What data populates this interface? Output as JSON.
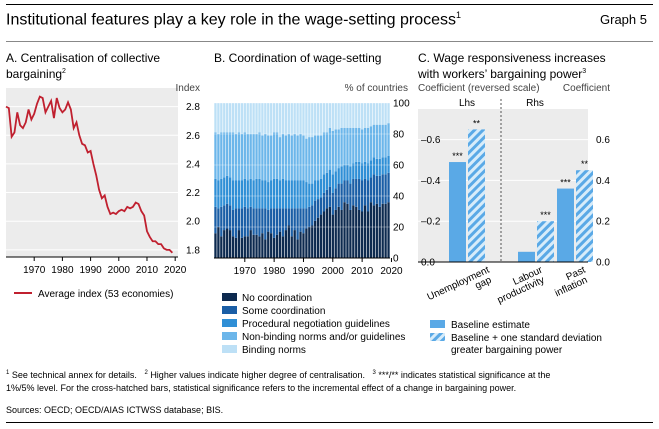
{
  "header": {
    "title": "Institutional features play a key role in the wage-setting process",
    "title_note": "1",
    "graph_number": "Graph 5"
  },
  "panels": {
    "a": {
      "title": "A. Centralisation of collective",
      "title_line2": "bargaining",
      "title_note": "2",
      "axis_unit": "Index"
    },
    "b": {
      "title": "B. Coordination of wage-setting",
      "axis_unit": "% of countries"
    },
    "c": {
      "title": "C. Wage responsiveness increases",
      "title_line2": "with workers’ bargaining power",
      "title_note": "3",
      "left_axis": "Coefficient (reversed scale)",
      "right_axis": "Coefficient",
      "lhs": "Lhs",
      "rhs": "Rhs"
    }
  },
  "footnotes": {
    "n1_mark": "1",
    "n1": "See technical annex for details.",
    "n2_mark": "2",
    "n2": "Higher values indicate higher degree of centralisation.",
    "n3_mark": "3",
    "n3a": "***/** indicates statistical significance at the",
    "n3b": "1%/5% level. For the cross-hatched bars, statistical significance refers to the incremental effect of a change in bargaining power.",
    "sources": "Sources: OECD; OECD/AIAS ICTWSS database; BIS."
  },
  "colors": {
    "accent_red": "#c0202f",
    "no_coord": "#0d2a4f",
    "some_coord": "#1a5ea6",
    "procedural": "#2f8fd6",
    "non_binding": "#6cb6ea",
    "binding": "#bde0f6",
    "baseline": "#5aa9e6"
  },
  "chart_data": [
    {
      "type": "line",
      "x": [
        1960,
        1961,
        1962,
        1963,
        1964,
        1965,
        1966,
        1967,
        1968,
        1969,
        1970,
        1971,
        1972,
        1973,
        1974,
        1975,
        1976,
        1977,
        1978,
        1979,
        1980,
        1981,
        1982,
        1983,
        1984,
        1985,
        1986,
        1987,
        1988,
        1989,
        1990,
        1991,
        1992,
        1993,
        1994,
        1995,
        1996,
        1997,
        1998,
        1999,
        2000,
        2001,
        2002,
        2003,
        2004,
        2005,
        2006,
        2007,
        2008,
        2009,
        2010,
        2011,
        2012,
        2013,
        2014,
        2015,
        2016,
        2017,
        2018,
        2019
      ],
      "series": [
        {
          "name": "Average index (53 economies)",
          "values": [
            2.8,
            2.79,
            2.59,
            2.62,
            2.76,
            2.67,
            2.65,
            2.69,
            2.78,
            2.71,
            2.75,
            2.82,
            2.87,
            2.86,
            2.76,
            2.8,
            2.84,
            2.72,
            2.86,
            2.79,
            2.76,
            2.78,
            2.83,
            2.78,
            2.65,
            2.69,
            2.6,
            2.54,
            2.53,
            2.48,
            2.49,
            2.4,
            2.32,
            2.22,
            2.16,
            2.18,
            2.1,
            2.05,
            2.06,
            2.05,
            2.07,
            2.08,
            2.07,
            2.1,
            2.09,
            2.1,
            2.13,
            2.12,
            2.07,
            2.04,
            1.93,
            1.89,
            1.86,
            1.86,
            1.84,
            1.84,
            1.81,
            1.8,
            1.8,
            1.78
          ]
        }
      ],
      "xticks": [
        1970,
        1980,
        1990,
        2000,
        2010,
        2020
      ],
      "yticks": [
        1.8,
        2.0,
        2.2,
        2.4,
        2.6,
        2.8
      ],
      "xlim": [
        1960,
        2021
      ],
      "ylim": [
        1.75,
        2.93
      ]
    },
    {
      "type": "bar",
      "stacked": true,
      "x": [
        1960,
        1961,
        1962,
        1963,
        1964,
        1965,
        1966,
        1967,
        1968,
        1969,
        1970,
        1971,
        1972,
        1973,
        1974,
        1975,
        1976,
        1977,
        1978,
        1979,
        1980,
        1981,
        1982,
        1983,
        1984,
        1985,
        1986,
        1987,
        1988,
        1989,
        1990,
        1991,
        1992,
        1993,
        1994,
        1995,
        1996,
        1997,
        1998,
        1999,
        2000,
        2001,
        2002,
        2003,
        2004,
        2005,
        2006,
        2007,
        2008,
        2009,
        2010,
        2011,
        2012,
        2013,
        2014,
        2015,
        2016,
        2017,
        2018,
        2019
      ],
      "series": [
        {
          "name": "No coordination",
          "values": [
            16,
            20,
            14,
            18,
            19,
            18,
            14,
            13,
            18,
            13,
            14,
            14,
            18,
            15,
            15,
            14,
            16,
            12,
            17,
            16,
            13,
            15,
            17,
            14,
            18,
            21,
            14,
            18,
            12,
            17,
            16,
            19,
            20,
            21,
            24,
            26,
            28,
            30,
            32,
            33,
            28,
            31,
            33,
            31,
            36,
            35,
            31,
            34,
            33,
            31,
            30,
            34,
            30,
            36,
            34,
            35,
            33,
            35,
            35,
            36
          ]
        },
        {
          "name": "Some coordination",
          "values": [
            17,
            12,
            19,
            16,
            16,
            16,
            17,
            19,
            14,
            19,
            19,
            18,
            15,
            17,
            17,
            18,
            16,
            20,
            14,
            16,
            19,
            17,
            15,
            18,
            14,
            11,
            18,
            14,
            20,
            15,
            16,
            13,
            13,
            13,
            13,
            12,
            11,
            12,
            12,
            13,
            14,
            14,
            15,
            17,
            14,
            15,
            17,
            17,
            18,
            20,
            20,
            17,
            20,
            16,
            20,
            18,
            20,
            19,
            19,
            19
          ]
        },
        {
          "name": "Procedural negotiation guidelines",
          "values": [
            18,
            18,
            18,
            18,
            18,
            18,
            19,
            18,
            18,
            18,
            18,
            18,
            18,
            18,
            19,
            19,
            18,
            18,
            18,
            18,
            19,
            19,
            18,
            19,
            18,
            18,
            18,
            18,
            18,
            18,
            18,
            17,
            15,
            14,
            13,
            12,
            12,
            12,
            11,
            11,
            12,
            11,
            10,
            11,
            10,
            10,
            11,
            10,
            11,
            11,
            11,
            11,
            11,
            11,
            11,
            11,
            11,
            11,
            11,
            11
          ]
        },
        {
          "name": "Non-binding norms and/or guidelines",
          "values": [
            30,
            30,
            30,
            29,
            28,
            29,
            31,
            30,
            31,
            30,
            30,
            30,
            29,
            30,
            29,
            30,
            29,
            30,
            30,
            29,
            30,
            30,
            28,
            29,
            29,
            30,
            29,
            30,
            29,
            30,
            29,
            28,
            30,
            30,
            29,
            29,
            28,
            27,
            26,
            27,
            28,
            27,
            25,
            25,
            24,
            24,
            25,
            23,
            22,
            22,
            22,
            22,
            23,
            22,
            21,
            22,
            22,
            21,
            21,
            21
          ]
        },
        {
          "name": "Binding norms",
          "values": [
            19,
            20,
            19,
            19,
            19,
            19,
            19,
            20,
            19,
            20,
            19,
            20,
            20,
            20,
            20,
            19,
            21,
            20,
            21,
            21,
            19,
            19,
            22,
            20,
            21,
            20,
            21,
            20,
            21,
            20,
            21,
            23,
            22,
            22,
            21,
            21,
            21,
            19,
            19,
            16,
            18,
            17,
            17,
            16,
            16,
            16,
            16,
            16,
            16,
            16,
            17,
            16,
            16,
            15,
            14,
            14,
            14,
            14,
            14,
            13
          ]
        }
      ],
      "xticks": [
        1970,
        1980,
        1990,
        2000,
        2010,
        2020
      ],
      "yticks": [
        0,
        20,
        40,
        60,
        80,
        100
      ],
      "ylim": [
        0,
        100
      ]
    },
    {
      "type": "bar",
      "categories": [
        "Unemployment gap",
        "Labour productivity",
        "Past inflation"
      ],
      "series": [
        {
          "name": "Baseline estimate",
          "values": [
            -0.49,
            0.05,
            0.36
          ],
          "significance": [
            "***",
            "",
            "***"
          ]
        },
        {
          "name": "Baseline + one standard deviation greater bargaining power",
          "values": [
            -0.65,
            0.2,
            0.45
          ],
          "significance": [
            "**",
            "***",
            "**"
          ]
        }
      ],
      "left_axis": {
        "label": "Coefficient (reversed scale)",
        "ticks": [
          -0.6,
          -0.4,
          -0.2,
          0.0
        ],
        "reversed": true,
        "ylim": [
          0,
          -0.75
        ],
        "applies_to": "Unemployment gap"
      },
      "right_axis": {
        "label": "Coefficient",
        "ticks": [
          0.0,
          0.2,
          0.4,
          0.6
        ],
        "ylim": [
          0,
          0.75
        ],
        "applies_to": [
          "Labour productivity",
          "Past inflation"
        ]
      }
    }
  ]
}
